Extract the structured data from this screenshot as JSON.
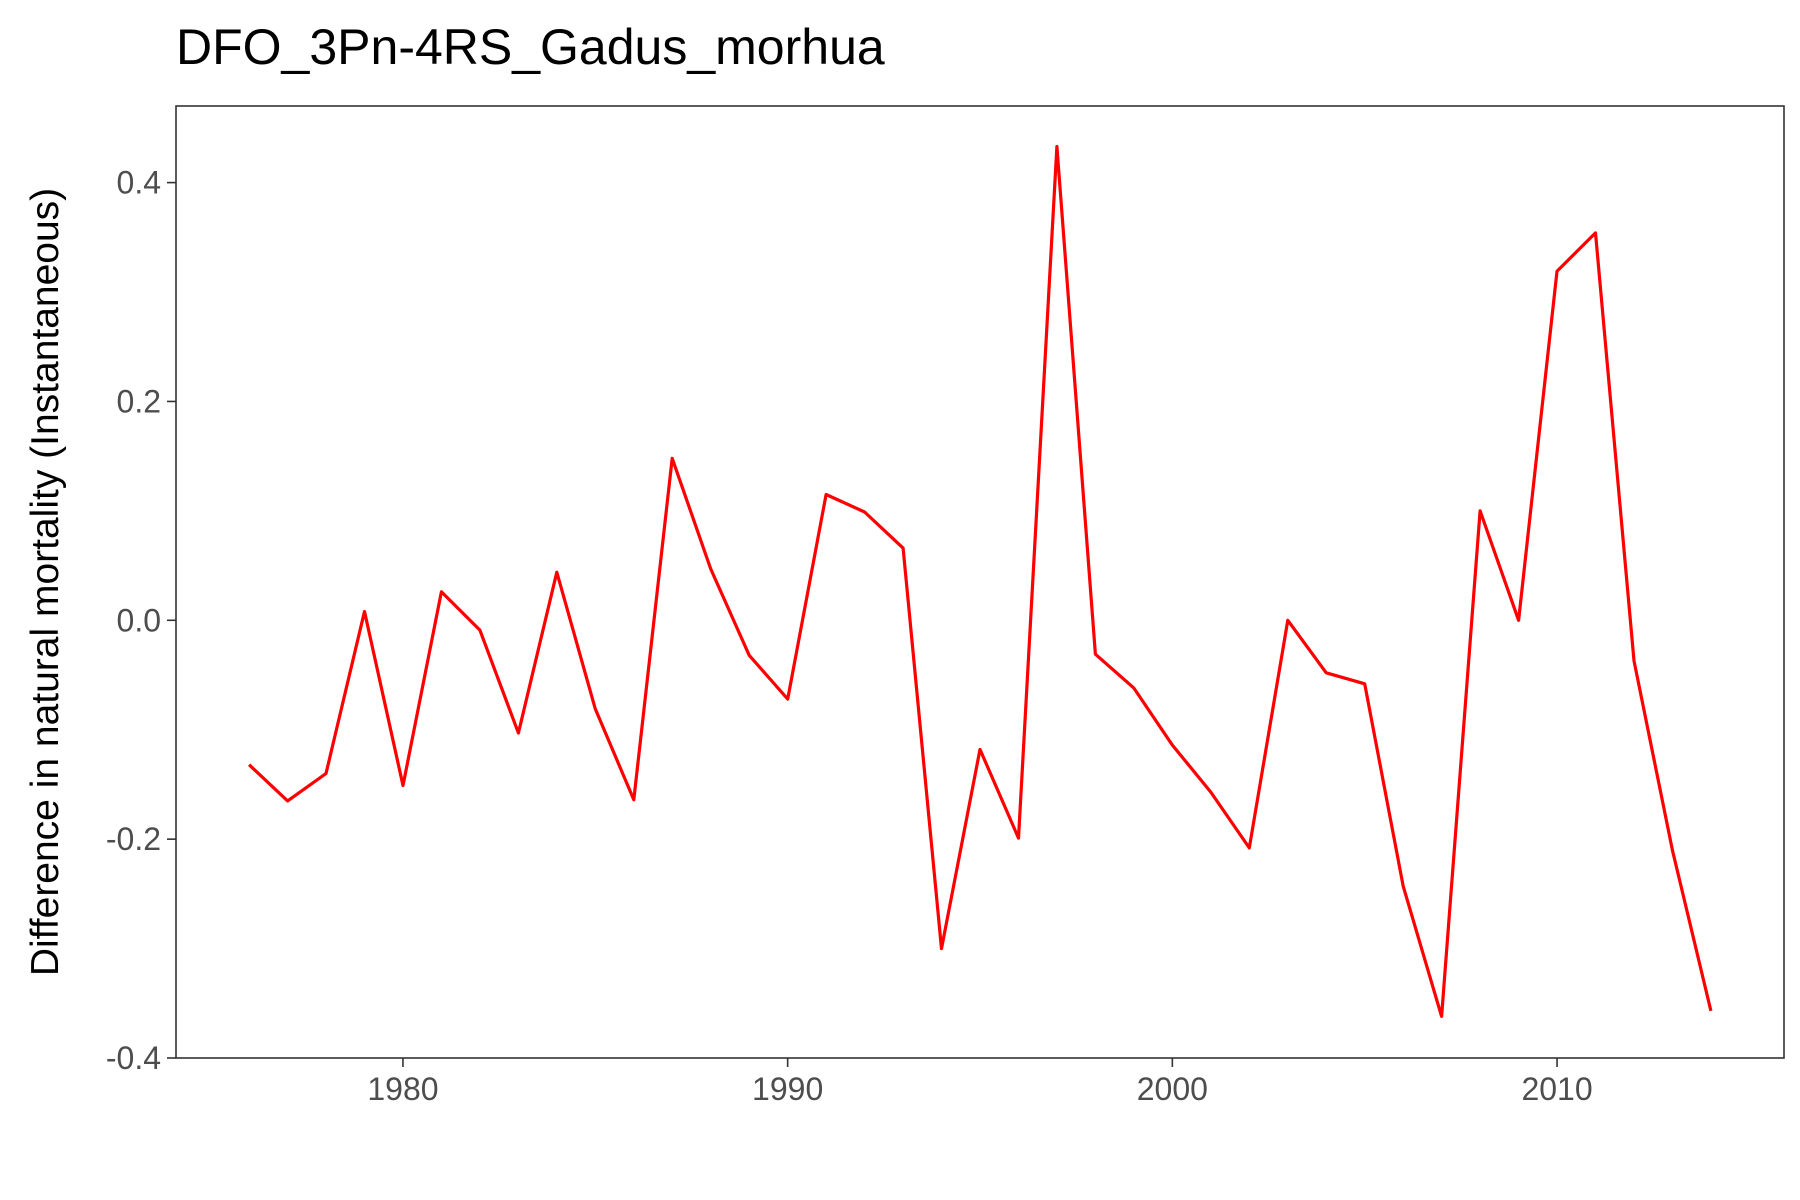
{
  "chart_data": {
    "type": "line",
    "title": "DFO_3Pn-4RS_Gadus_morhua",
    "xlabel": "",
    "ylabel": "Difference in natural mortality (Instantaneous)",
    "xlim": [
      1974.1,
      2015.9
    ],
    "ylim": [
      -0.4,
      0.47
    ],
    "x_ticks": [
      1980,
      1990,
      2000,
      2010
    ],
    "x_tick_labels": [
      "1980",
      "1990",
      "2000",
      "2010"
    ],
    "y_ticks": [
      -0.4,
      -0.2,
      0.0,
      0.2,
      0.4
    ],
    "y_tick_labels": [
      "-0.4",
      "-0.2",
      "0.0",
      "0.2",
      "0.4"
    ],
    "grid": false,
    "legend": "none",
    "series": [
      {
        "color": "#ff0000",
        "x": [
          1976,
          1977,
          1978,
          1979,
          1980,
          1981,
          1982,
          1983,
          1984,
          1985,
          1986,
          1987,
          1988,
          1989,
          1990,
          1991,
          1992,
          1993,
          1994,
          1995,
          1996,
          1997,
          1998,
          1999,
          2000,
          2001,
          2002,
          2003,
          2004,
          2005,
          2006,
          2007,
          2008,
          2009,
          2010,
          2011,
          2012,
          2013,
          2014
        ],
        "y": [
          -0.132,
          -0.165,
          -0.14,
          0.008,
          -0.151,
          0.026,
          -0.009,
          -0.103,
          0.044,
          -0.081,
          -0.164,
          0.148,
          0.047,
          -0.032,
          -0.072,
          0.115,
          0.099,
          0.066,
          -0.3,
          -0.118,
          -0.199,
          0.433,
          -0.031,
          -0.062,
          -0.114,
          -0.157,
          -0.208,
          0.0,
          -0.048,
          -0.058,
          -0.243,
          -0.362,
          0.1,
          0.0,
          0.319,
          0.354,
          -0.037,
          -0.21,
          -0.357
        ]
      }
    ]
  }
}
